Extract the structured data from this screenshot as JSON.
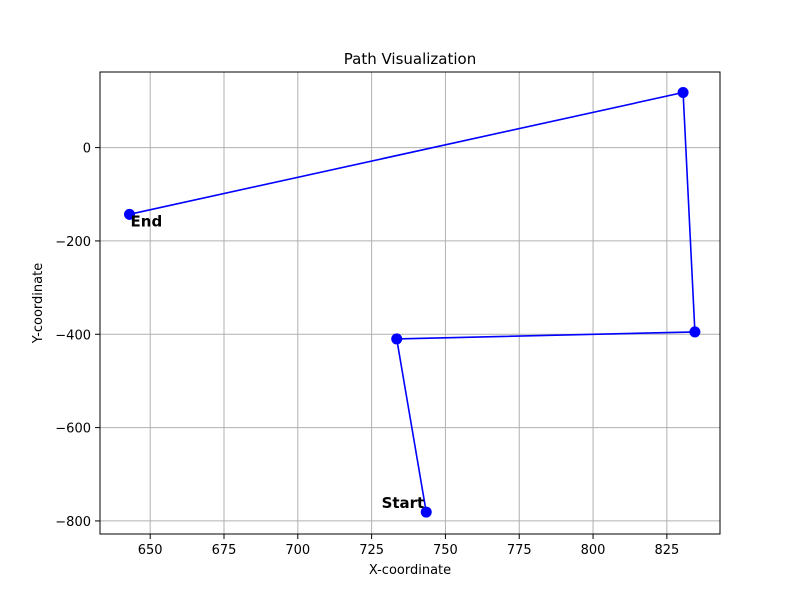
{
  "chart_data": {
    "type": "line",
    "title": "Path Visualization",
    "xlabel": "X-coordinate",
    "ylabel": "Y-coordinate",
    "xlim": [
      633,
      843
    ],
    "ylim": [
      -828,
      162
    ],
    "xticks": [
      650,
      675,
      700,
      725,
      750,
      775,
      800,
      825
    ],
    "yticks": [
      -800,
      -600,
      -400,
      -200,
      0
    ],
    "xtick_labels": [
      "650",
      "675",
      "700",
      "725",
      "750",
      "775",
      "800",
      "825"
    ],
    "ytick_labels": [
      "−800",
      "−600",
      "−400",
      "−200",
      "0"
    ],
    "grid": true,
    "series": [
      {
        "color": "#0000ff",
        "marker": "circle",
        "points": [
          {
            "x": 743.5,
            "y": -781
          },
          {
            "x": 733.5,
            "y": -410
          },
          {
            "x": 834.5,
            "y": -395
          },
          {
            "x": 830.5,
            "y": 118
          },
          {
            "x": 643.0,
            "y": -143
          }
        ]
      }
    ],
    "annotations": [
      {
        "text": "Start",
        "x": 743.5,
        "y": -781,
        "position": "upper-left"
      },
      {
        "text": "End",
        "x": 643.0,
        "y": -143,
        "position": "lower-right"
      }
    ]
  }
}
